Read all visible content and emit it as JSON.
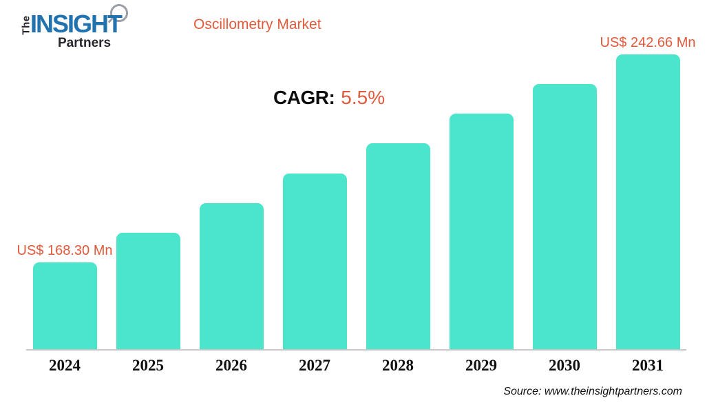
{
  "logo": {
    "the": "The",
    "insight": "INSIGHT",
    "partners": "Partners",
    "magnifier_icon": "magnifier-icon",
    "blue": "#2173af",
    "dark": "#26262e"
  },
  "header": {
    "title": "Oscillometry Market"
  },
  "cagr": {
    "label": "CAGR:",
    "value": "5.5%"
  },
  "source": "Source: www.theinsightpartners.com",
  "colors": {
    "bar": "#4be5cc",
    "accent_orange": "#e05a3c",
    "axis_line": "#cbc5c5",
    "text_dark": "#111111"
  },
  "chart_data": {
    "type": "bar",
    "title": "Oscillometry Market",
    "categories": [
      "2024",
      "2025",
      "2026",
      "2027",
      "2028",
      "2029",
      "2030",
      "2031"
    ],
    "values": [
      168.3,
      178.92,
      189.55,
      200.17,
      210.79,
      221.41,
      232.04,
      242.66
    ],
    "unit": "US$ Mn",
    "bar_labels": [
      "US$ 168.30 Mn",
      null,
      null,
      null,
      null,
      null,
      null,
      "US$ 242.66 Mn"
    ],
    "cagr": "5.5%",
    "xlabel": "",
    "ylabel": "",
    "value_range_shown": [
      168.3,
      242.66
    ],
    "baseline_not_zero": true,
    "grid": false,
    "legend": false
  }
}
